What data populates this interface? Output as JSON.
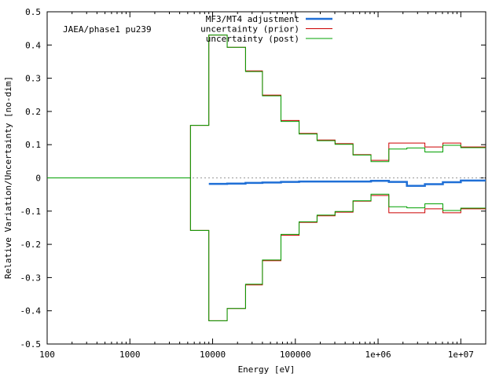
{
  "chart_data": {
    "type": "line",
    "title": "",
    "xlabel": "Energy [eV]",
    "ylabel": "Relative Variation/Uncertainty [no-dim]",
    "annotation": "JAEA/phase1 pu239",
    "xscale": "log",
    "xlim": [
      100,
      20000000
    ],
    "ylim": [
      -0.5,
      0.5
    ],
    "x_ticks": [
      100,
      1000,
      10000,
      100000,
      1000000,
      10000000
    ],
    "x_tick_labels": [
      "100",
      "1000",
      "10000",
      "100000",
      "1e+06",
      "1e+07"
    ],
    "y_ticks": [
      -0.5,
      -0.4,
      -0.3,
      -0.2,
      -0.1,
      0,
      0.1,
      0.2,
      0.3,
      0.4,
      0.5
    ],
    "y_tick_labels": [
      "-0.5",
      "-0.4",
      "-0.3",
      "-0.2",
      "-0.1",
      "0",
      "0.1",
      "0.2",
      "0.3",
      "0.4",
      "0.5"
    ],
    "zero_line": "dotted",
    "grid": false,
    "legend_position": "top-right",
    "step_style": "histogram",
    "series": [
      {
        "name": "MF3/MT4 adjustment",
        "color": "#1f6fd6",
        "symmetric": false,
        "edges": [
          9000,
          15000,
          25000,
          40000,
          67000,
          111000,
          183000,
          302000,
          498000,
          821000,
          1350000,
          2230000,
          3680000,
          6070000,
          10000000,
          20000000
        ],
        "values": [
          -0.018,
          -0.017,
          -0.015,
          -0.014,
          -0.012,
          -0.011,
          -0.011,
          -0.011,
          -0.011,
          -0.009,
          -0.012,
          -0.024,
          -0.019,
          -0.013,
          -0.008
        ]
      },
      {
        "name": "uncertainty (prior)",
        "color": "#cc0000",
        "symmetric": true,
        "edges": [
          5400,
          9000,
          15000,
          25000,
          40000,
          67000,
          111000,
          183000,
          302000,
          498000,
          821000,
          1350000,
          2230000,
          3680000,
          6070000,
          10000000,
          20000000
        ],
        "values": [
          0.158,
          0.43,
          0.393,
          0.322,
          0.249,
          0.173,
          0.134,
          0.114,
          0.103,
          0.07,
          0.053,
          0.105,
          0.105,
          0.093,
          0.105,
          0.093
        ]
      },
      {
        "name": "uncertainty (post)",
        "color": "#00a000",
        "symmetric": true,
        "edges": [
          5400,
          9000,
          15000,
          25000,
          40000,
          67000,
          111000,
          183000,
          302000,
          498000,
          821000,
          1350000,
          2230000,
          3680000,
          6070000,
          10000000,
          20000000
        ],
        "values": [
          0.158,
          0.43,
          0.393,
          0.32,
          0.247,
          0.17,
          0.132,
          0.112,
          0.101,
          0.069,
          0.049,
          0.087,
          0.09,
          0.078,
          0.098,
          0.091
        ]
      }
    ]
  }
}
